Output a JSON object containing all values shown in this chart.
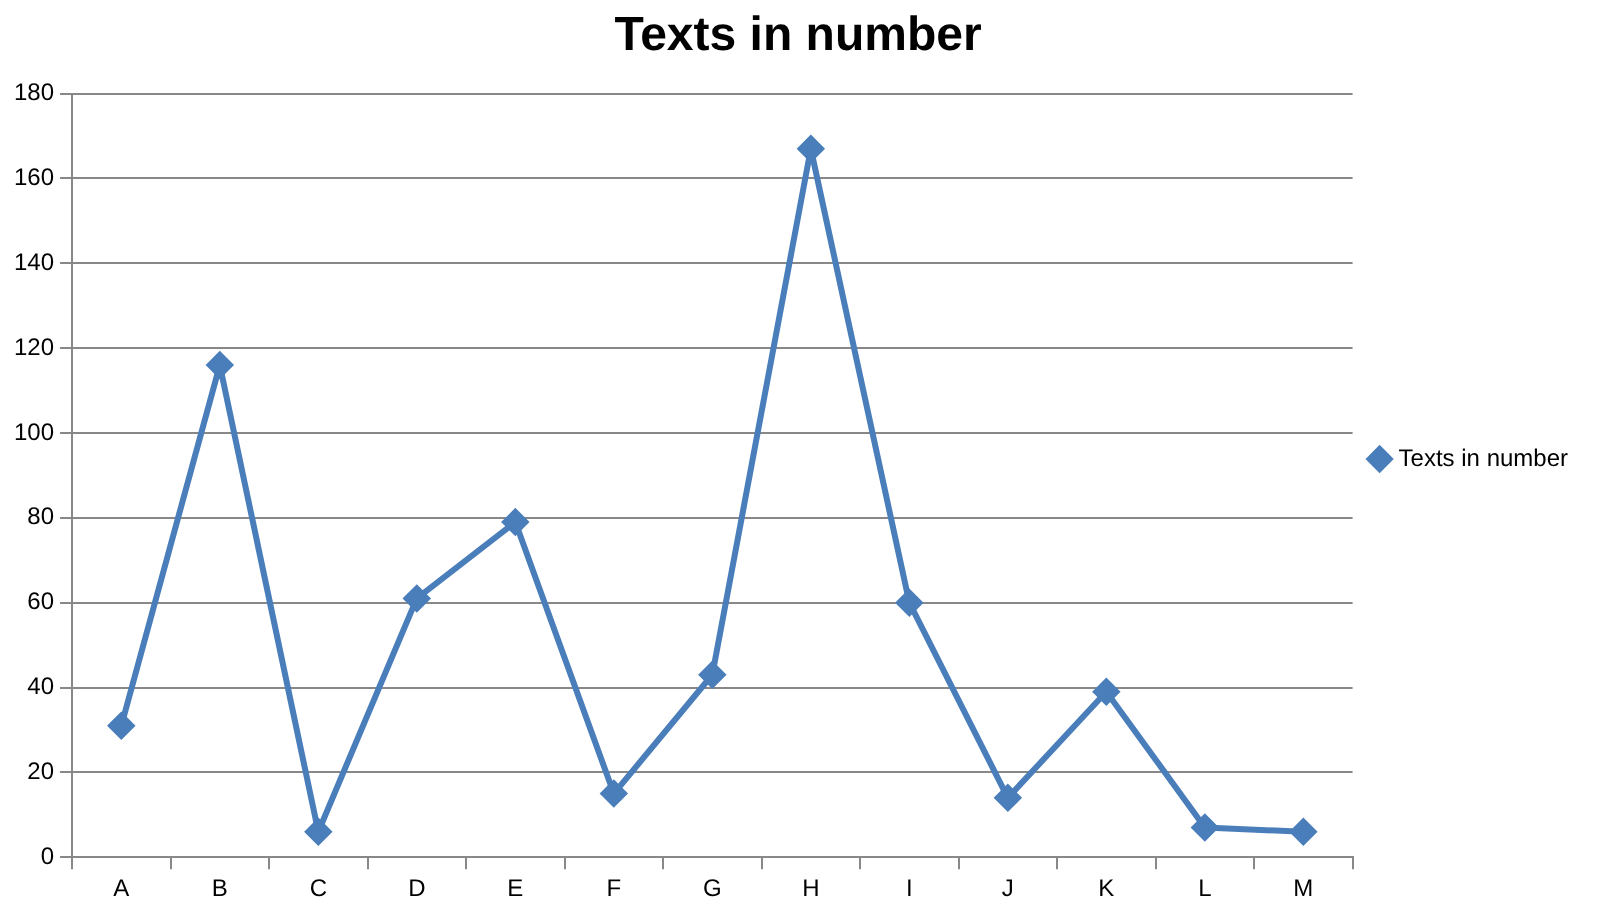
{
  "chart_data": {
    "type": "line",
    "title": "Texts in number",
    "categories": [
      "A",
      "B",
      "C",
      "D",
      "E",
      "F",
      "G",
      "H",
      "I",
      "J",
      "K",
      "L",
      "M"
    ],
    "series": [
      {
        "name": "Texts in number",
        "color": "#4a7ebb",
        "values": [
          31,
          116,
          6,
          61,
          79,
          15,
          43,
          167,
          60,
          14,
          39,
          7,
          6
        ]
      }
    ],
    "ylim": [
      0,
      180
    ],
    "yticks": [
      0,
      20,
      40,
      60,
      80,
      100,
      120,
      140,
      160,
      180
    ],
    "grid": "y",
    "legend": "right",
    "marker": "diamond",
    "line_style": "solid"
  }
}
